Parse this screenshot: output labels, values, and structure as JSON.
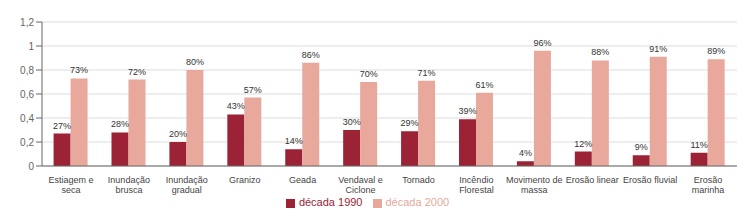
{
  "chart_data": {
    "type": "bar",
    "categories": [
      "Estiagem e\nseca",
      "Inundação\nbrusca",
      "Inundação\ngradual",
      "Granizo",
      "Geada",
      "Vendaval e\nCiclone",
      "Tornado",
      "Incêndio\nFlorestal",
      "Movimento de\nmassa",
      "Erosão linear",
      "Erosão fluvial",
      "Erosão\nmarinha"
    ],
    "series": [
      {
        "name": "década 1990",
        "color": "#9B2335",
        "values": [
          0.27,
          0.28,
          0.2,
          0.43,
          0.14,
          0.3,
          0.29,
          0.39,
          0.04,
          0.12,
          0.09,
          0.11
        ],
        "value_labels": [
          "27%",
          "28%",
          "20%",
          "43%",
          "14%",
          "30%",
          "29%",
          "39%",
          "4%",
          "12%",
          "9%",
          "11%"
        ]
      },
      {
        "name": "década 2000",
        "color": "#E8A89C",
        "values": [
          0.73,
          0.72,
          0.8,
          0.57,
          0.86,
          0.7,
          0.71,
          0.61,
          0.96,
          0.88,
          0.91,
          0.89
        ],
        "value_labels": [
          "73%",
          "72%",
          "80%",
          "57%",
          "86%",
          "70%",
          "71%",
          "61%",
          "96%",
          "88%",
          "91%",
          "89%"
        ]
      }
    ],
    "ylim": [
      0,
      1.2
    ],
    "yticks": [
      0,
      {
        "value": 0.2,
        "label": "0,2"
      },
      {
        "value": 0.4,
        "label": "0,4"
      },
      {
        "value": 0.6,
        "label": "0,6"
      },
      {
        "value": 0.8,
        "label": "0,8"
      },
      1,
      {
        "value": 1.2,
        "label": "1,2"
      }
    ],
    "grid": true,
    "legend": "bottom",
    "data_labels": true
  }
}
